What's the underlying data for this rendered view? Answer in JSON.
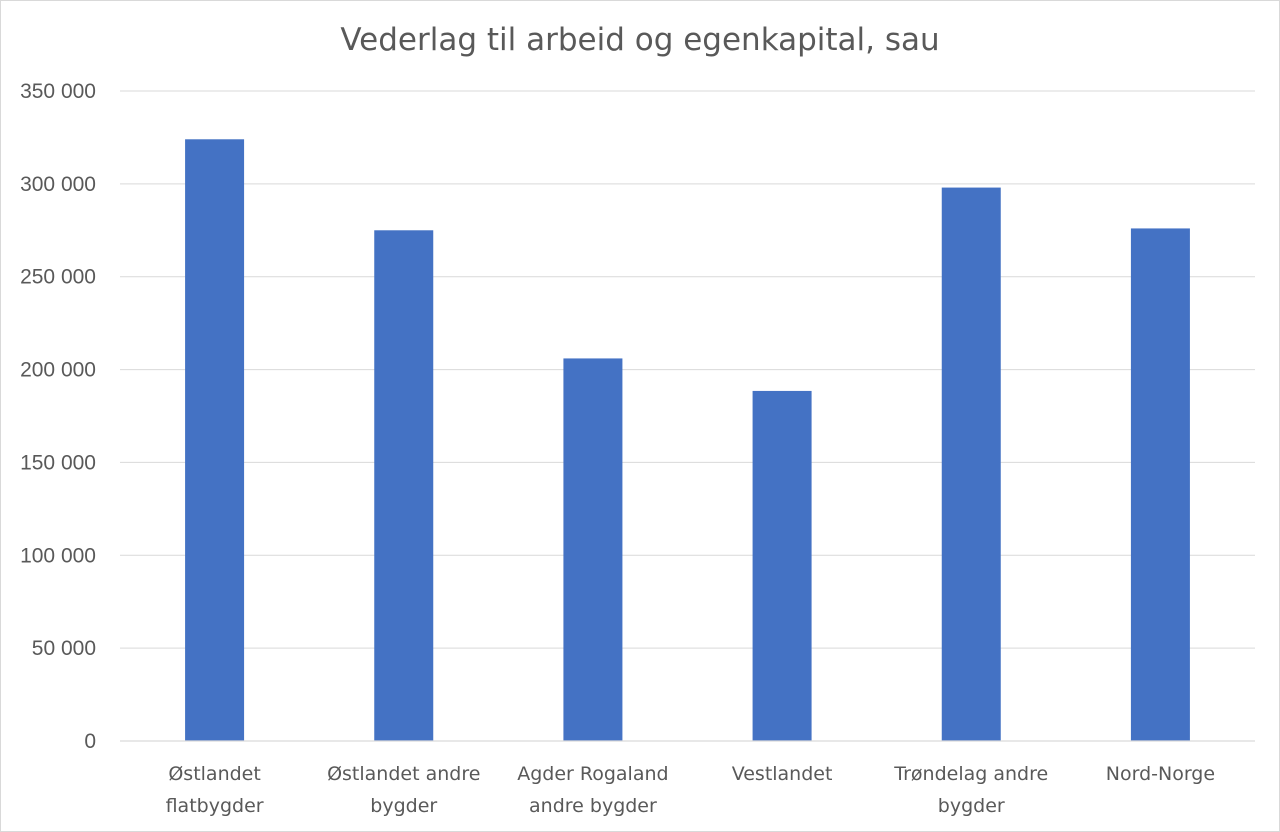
{
  "chart_data": {
    "type": "bar",
    "title": "Vederlag til arbeid og egenkapital, sau",
    "xlabel": "",
    "ylabel": "",
    "categories": [
      [
        "Østlandet",
        "flatbygder"
      ],
      [
        "Østlandet andre",
        "bygder"
      ],
      [
        "Agder Rogaland",
        "andre bygder"
      ],
      [
        "Vestlandet"
      ],
      [
        "Trøndelag andre",
        "bygder"
      ],
      [
        "Nord-Norge"
      ]
    ],
    "values": [
      324000,
      275000,
      206000,
      188500,
      298000,
      276000
    ],
    "ylim": [
      0,
      350000
    ],
    "yticks": [
      0,
      50000,
      100000,
      150000,
      200000,
      250000,
      300000,
      350000
    ],
    "ytick_labels": [
      "0",
      "50 000",
      "100 000",
      "150 000",
      "200 000",
      "250 000",
      "300 000",
      "350 000"
    ],
    "grid": true,
    "legend": "none",
    "bar_color": "#4472C4"
  }
}
